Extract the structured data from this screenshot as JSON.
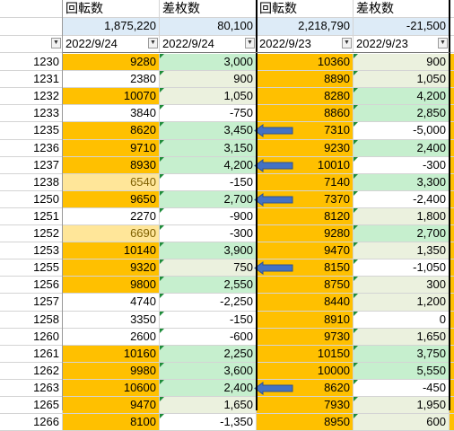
{
  "colors": {
    "orange": "#ffc000",
    "light_orange": "#ffe699",
    "green": "#c6efce",
    "light_green": "#ebf1de",
    "white": "#ffffff",
    "header_blue": "#ddebf7",
    "arrow_blue": "#4472c4"
  },
  "header": {
    "col1_label": "回転数",
    "col2_label": "差枚数",
    "col3_label": "回転数",
    "col4_label": "差枚数"
  },
  "totals": {
    "col1": "1,875,220",
    "col2": "80,100",
    "col3": "2,218,790",
    "col4": "-21,500"
  },
  "filters": {
    "col1": "2022/9/24",
    "col2": "2022/9/24",
    "col3": "2022/9/23",
    "col4": "2022/9/23",
    "rowhead_icon": "filter-sort-icon"
  },
  "rows": [
    {
      "id": "1230",
      "a": "9280",
      "af": "orange",
      "b": "3,000",
      "bf": "green",
      "c": "10360",
      "cf": "orange",
      "d": "900",
      "df": "light_green",
      "arrow": false
    },
    {
      "id": "1231",
      "a": "2380",
      "af": "white",
      "b": "900",
      "bf": "light_green",
      "c": "8890",
      "cf": "orange",
      "d": "1,050",
      "df": "light_green",
      "arrow": false
    },
    {
      "id": "1232",
      "a": "10070",
      "af": "orange",
      "b": "1,050",
      "bf": "light_green",
      "c": "8280",
      "cf": "orange",
      "d": "4,200",
      "df": "green",
      "arrow": false
    },
    {
      "id": "1233",
      "a": "3840",
      "af": "white",
      "b": "-750",
      "bf": "white",
      "c": "8860",
      "cf": "orange",
      "d": "2,850",
      "df": "green",
      "arrow": false
    },
    {
      "id": "1235",
      "a": "8620",
      "af": "orange",
      "b": "3,450",
      "bf": "green",
      "c": "7310",
      "cf": "orange",
      "d": "-5,000",
      "df": "white",
      "arrow": true
    },
    {
      "id": "1236",
      "a": "9710",
      "af": "orange",
      "b": "3,150",
      "bf": "green",
      "c": "9230",
      "cf": "orange",
      "d": "2,400",
      "df": "green",
      "arrow": false
    },
    {
      "id": "1237",
      "a": "8930",
      "af": "orange",
      "b": "4,200",
      "bf": "green",
      "c": "10010",
      "cf": "orange",
      "d": "-300",
      "df": "white",
      "arrow": true
    },
    {
      "id": "1238",
      "a": "6540",
      "af": "light_orange",
      "b": "-150",
      "bf": "white",
      "c": "7140",
      "cf": "orange",
      "d": "3,300",
      "df": "green",
      "arrow": false
    },
    {
      "id": "1250",
      "a": "9650",
      "af": "orange",
      "b": "2,700",
      "bf": "green",
      "c": "7370",
      "cf": "orange",
      "d": "-2,400",
      "df": "white",
      "arrow": true
    },
    {
      "id": "1251",
      "a": "2270",
      "af": "white",
      "b": "-900",
      "bf": "white",
      "c": "8120",
      "cf": "orange",
      "d": "1,800",
      "df": "light_green",
      "arrow": false
    },
    {
      "id": "1252",
      "a": "6690",
      "af": "light_orange",
      "b": "-300",
      "bf": "white",
      "c": "9280",
      "cf": "orange",
      "d": "2,700",
      "df": "green",
      "arrow": false
    },
    {
      "id": "1253",
      "a": "10140",
      "af": "orange",
      "b": "3,900",
      "bf": "green",
      "c": "9470",
      "cf": "orange",
      "d": "1,350",
      "df": "light_green",
      "arrow": false
    },
    {
      "id": "1255",
      "a": "9320",
      "af": "orange",
      "b": "750",
      "bf": "light_green",
      "c": "8150",
      "cf": "orange",
      "d": "-1,050",
      "df": "white",
      "arrow": true
    },
    {
      "id": "1256",
      "a": "9800",
      "af": "orange",
      "b": "2,550",
      "bf": "green",
      "c": "8750",
      "cf": "orange",
      "d": "300",
      "df": "light_green",
      "arrow": false
    },
    {
      "id": "1257",
      "a": "4740",
      "af": "white",
      "b": "-2,250",
      "bf": "white",
      "c": "8440",
      "cf": "orange",
      "d": "1,200",
      "df": "light_green",
      "arrow": false
    },
    {
      "id": "1258",
      "a": "3350",
      "af": "white",
      "b": "-150",
      "bf": "white",
      "c": "8910",
      "cf": "orange",
      "d": "0",
      "df": "white",
      "arrow": false
    },
    {
      "id": "1260",
      "a": "2600",
      "af": "white",
      "b": "-600",
      "bf": "white",
      "c": "9730",
      "cf": "orange",
      "d": "1,650",
      "df": "light_green",
      "arrow": false
    },
    {
      "id": "1261",
      "a": "10160",
      "af": "orange",
      "b": "2,250",
      "bf": "green",
      "c": "10150",
      "cf": "orange",
      "d": "3,750",
      "df": "green",
      "arrow": false
    },
    {
      "id": "1262",
      "a": "9980",
      "af": "orange",
      "b": "3,600",
      "bf": "green",
      "c": "10000",
      "cf": "orange",
      "d": "5,550",
      "df": "green",
      "arrow": false
    },
    {
      "id": "1263",
      "a": "10600",
      "af": "orange",
      "b": "2,400",
      "bf": "green",
      "c": "8620",
      "cf": "orange",
      "d": "-450",
      "df": "white",
      "arrow": true
    },
    {
      "id": "1265",
      "a": "9470",
      "af": "orange",
      "b": "1,650",
      "bf": "light_green",
      "c": "7930",
      "cf": "orange",
      "d": "1,950",
      "df": "light_green",
      "arrow": false
    },
    {
      "id": "1266",
      "a": "8100",
      "af": "orange",
      "b": "-1,350",
      "bf": "white",
      "c": "8950",
      "cf": "orange",
      "d": "600",
      "df": "light_green",
      "arrow": false
    }
  ]
}
